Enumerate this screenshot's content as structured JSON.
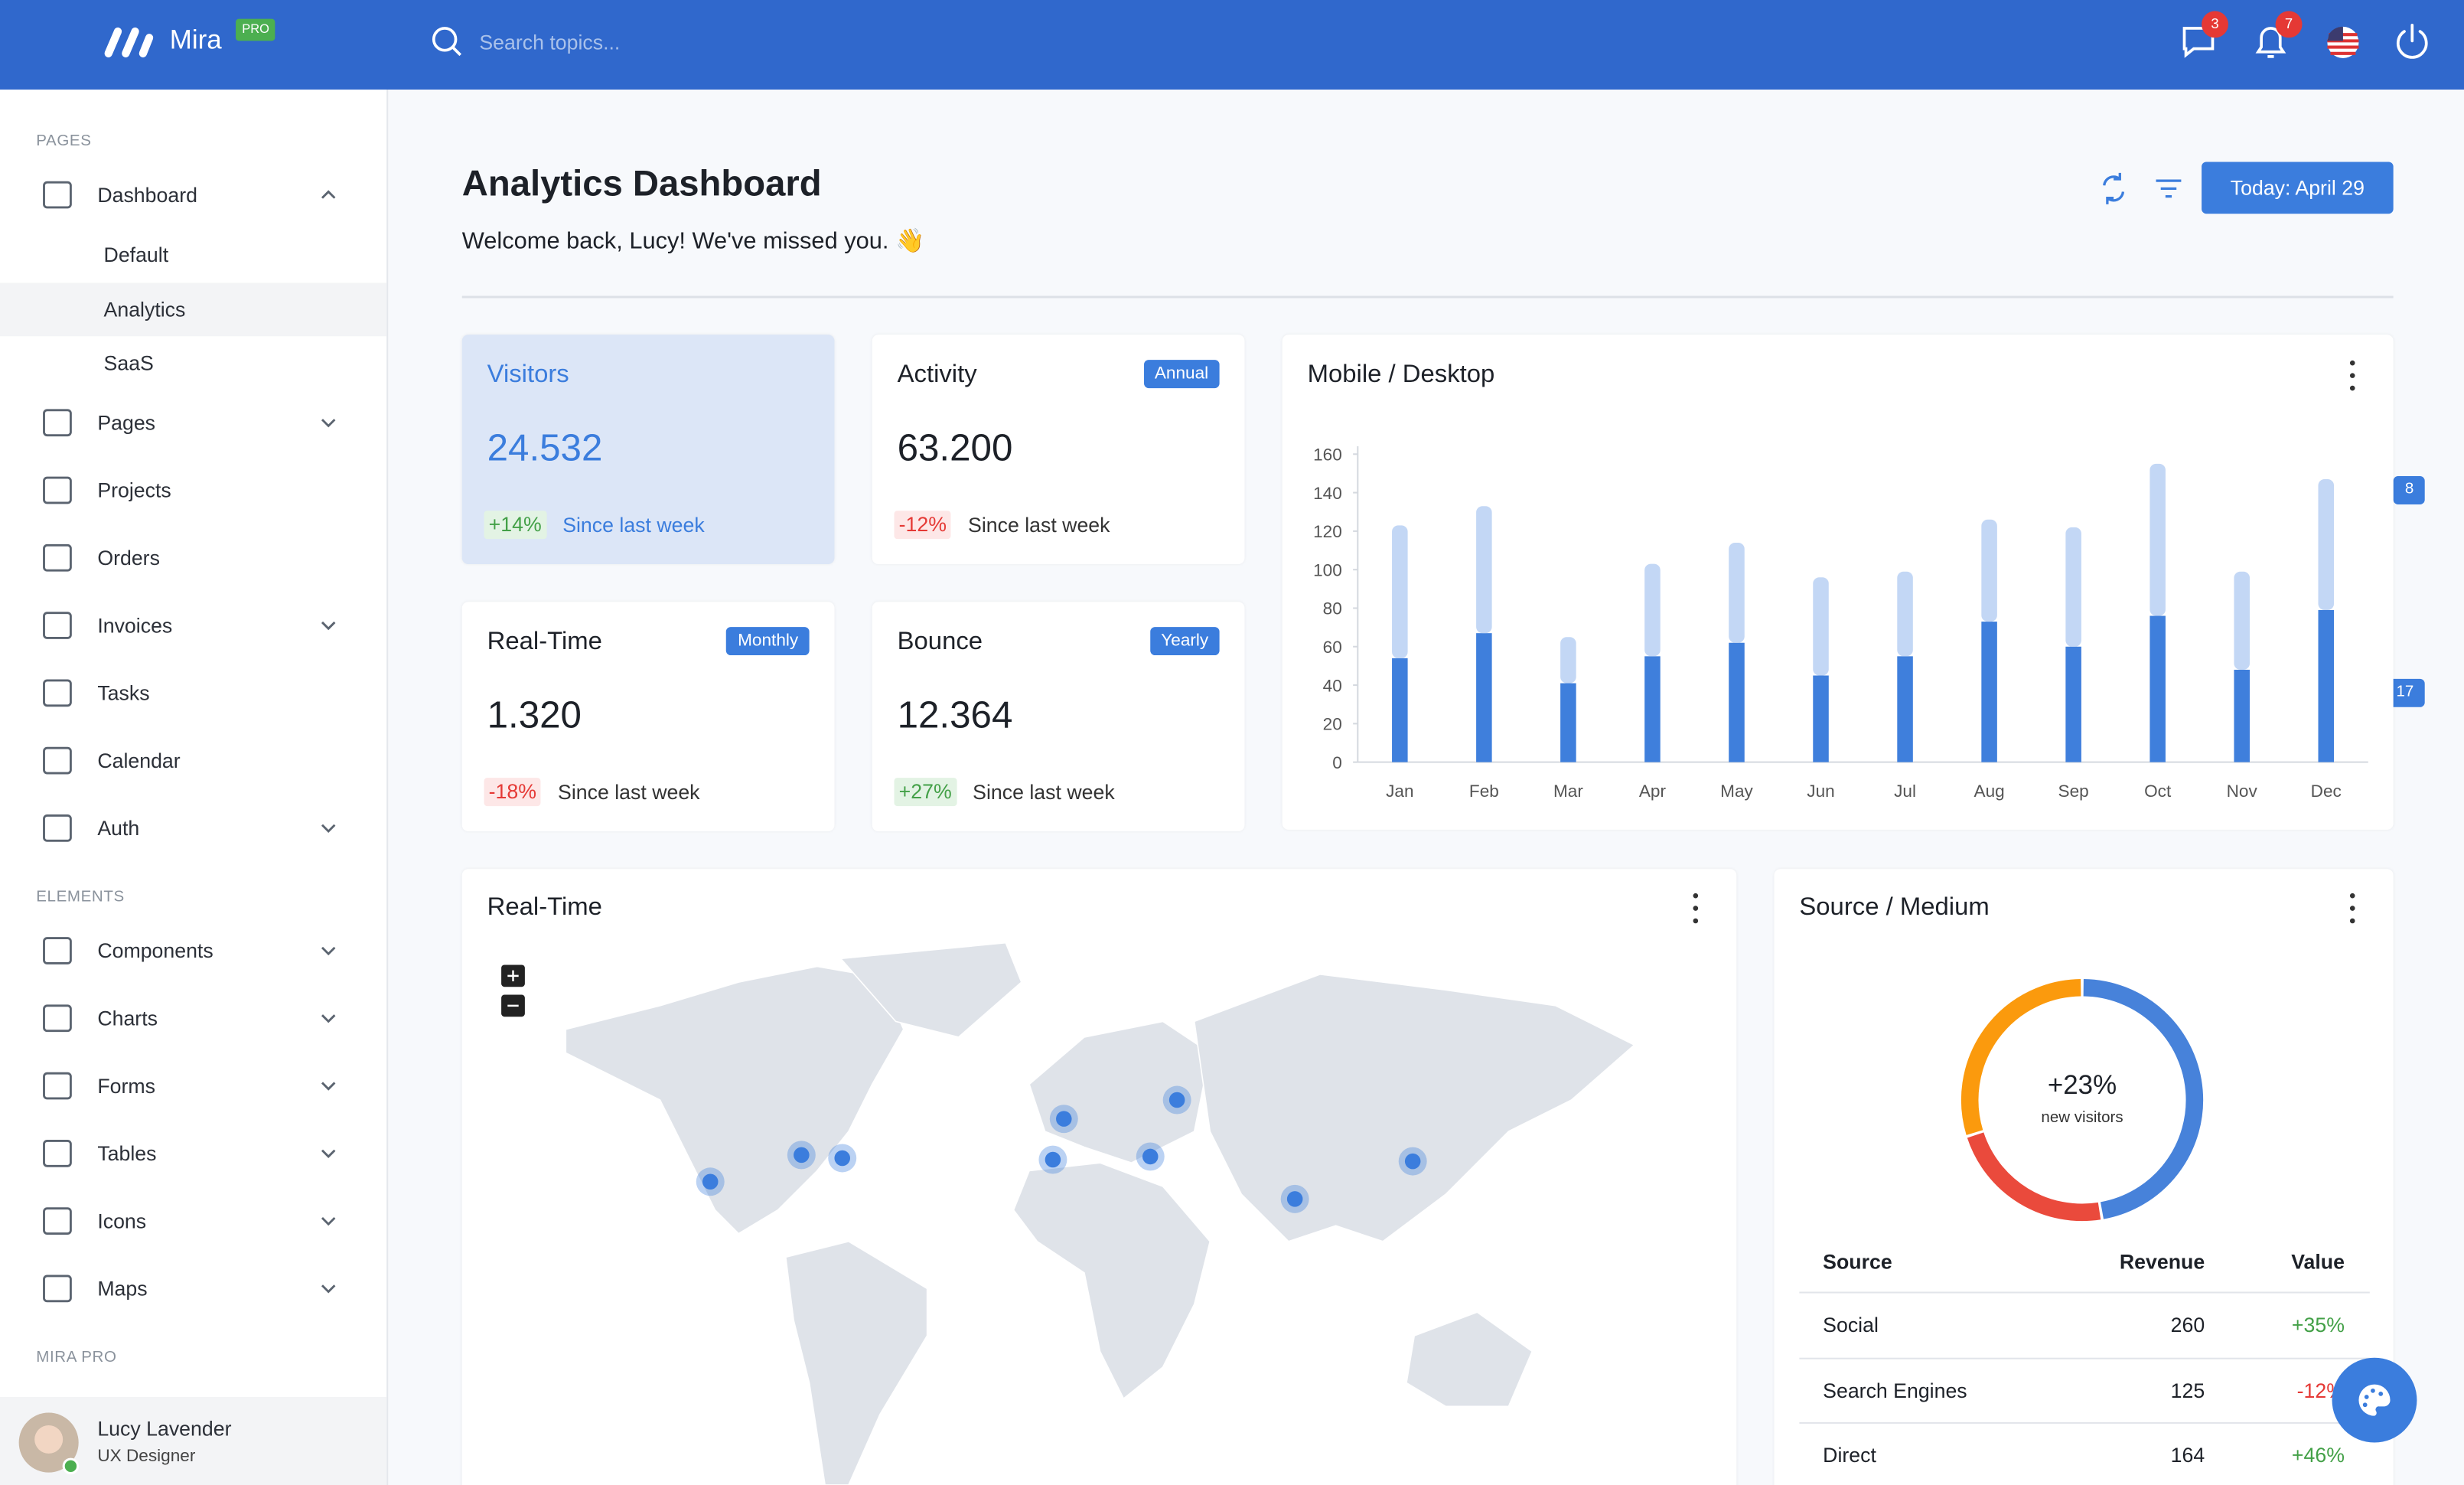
{
  "header": {
    "brand": "Mira",
    "badge": "PRO",
    "search_placeholder": "Search topics...",
    "messages_count": "3",
    "notifications_count": "7"
  },
  "sidebar": {
    "sections": [
      {
        "title": "PAGES",
        "items": [
          {
            "label": "Dashboard",
            "expandable": true,
            "open": true,
            "children": [
              "Default",
              "Analytics",
              "SaaS"
            ],
            "active_child": 1
          },
          {
            "label": "Pages",
            "expandable": true
          },
          {
            "label": "Projects",
            "badge": "8"
          },
          {
            "label": "Orders"
          },
          {
            "label": "Invoices",
            "expandable": true
          },
          {
            "label": "Tasks",
            "badge": "17"
          },
          {
            "label": "Calendar"
          },
          {
            "label": "Auth",
            "expandable": true
          }
        ]
      },
      {
        "title": "ELEMENTS",
        "items": [
          {
            "label": "Components",
            "expandable": true
          },
          {
            "label": "Charts",
            "expandable": true
          },
          {
            "label": "Forms",
            "expandable": true
          },
          {
            "label": "Tables",
            "expandable": true
          },
          {
            "label": "Icons",
            "expandable": true
          },
          {
            "label": "Maps",
            "expandable": true
          }
        ]
      },
      {
        "title": "MIRA PRO",
        "items": []
      }
    ],
    "user": {
      "name": "Lucy Lavender",
      "role": "UX Designer"
    }
  },
  "page": {
    "title": "Analytics Dashboard",
    "subtitle": "Welcome back, Lucy! We've missed you. 👋",
    "date_button": "Today: April 29"
  },
  "stats": [
    {
      "title": "Visitors",
      "value": "24.532",
      "change": "+14%",
      "period": "Since last week",
      "highlight": true
    },
    {
      "title": "Activity",
      "tag": "Annual",
      "value": "63.200",
      "change": "-12%",
      "period": "Since last week"
    },
    {
      "title": "Real-Time",
      "tag": "Monthly",
      "value": "1.320",
      "change": "-18%",
      "period": "Since last week"
    },
    {
      "title": "Bounce",
      "tag": "Yearly",
      "value": "12.364",
      "change": "+27%",
      "period": "Since last week"
    }
  ],
  "chart_data": {
    "type": "bar",
    "stacked": true,
    "title": "Mobile / Desktop",
    "categories": [
      "Jan",
      "Feb",
      "Mar",
      "Apr",
      "May",
      "Jun",
      "Jul",
      "Aug",
      "Sep",
      "Oct",
      "Nov",
      "Dec"
    ],
    "series": [
      {
        "color": "#3f7fdc",
        "values": [
          54,
          67,
          41,
          55,
          62,
          45,
          55,
          73,
          60,
          76,
          48,
          79
        ]
      },
      {
        "color": "#c3d7f5",
        "values": [
          69,
          66,
          24,
          48,
          52,
          51,
          44,
          53,
          62,
          79,
          51,
          68
        ]
      }
    ],
    "ylim": [
      0,
      160
    ],
    "yticks": [
      0,
      20,
      40,
      60,
      80,
      100,
      120,
      140,
      160
    ],
    "grid": false
  },
  "realtime_map": {
    "title": "Real-Time"
  },
  "source_medium": {
    "title": "Source / Medium",
    "center_value": "+23%",
    "center_label": "new visitors",
    "columns": [
      "Source",
      "Revenue",
      "Value"
    ],
    "rows": [
      [
        "Social",
        260,
        "+35%"
      ],
      [
        "Search Engines",
        125,
        "-12%"
      ],
      [
        "Direct",
        164,
        "+46%"
      ]
    ],
    "colors": [
      "#4782da",
      "#ea4a3c",
      "#fb9a0d"
    ]
  }
}
